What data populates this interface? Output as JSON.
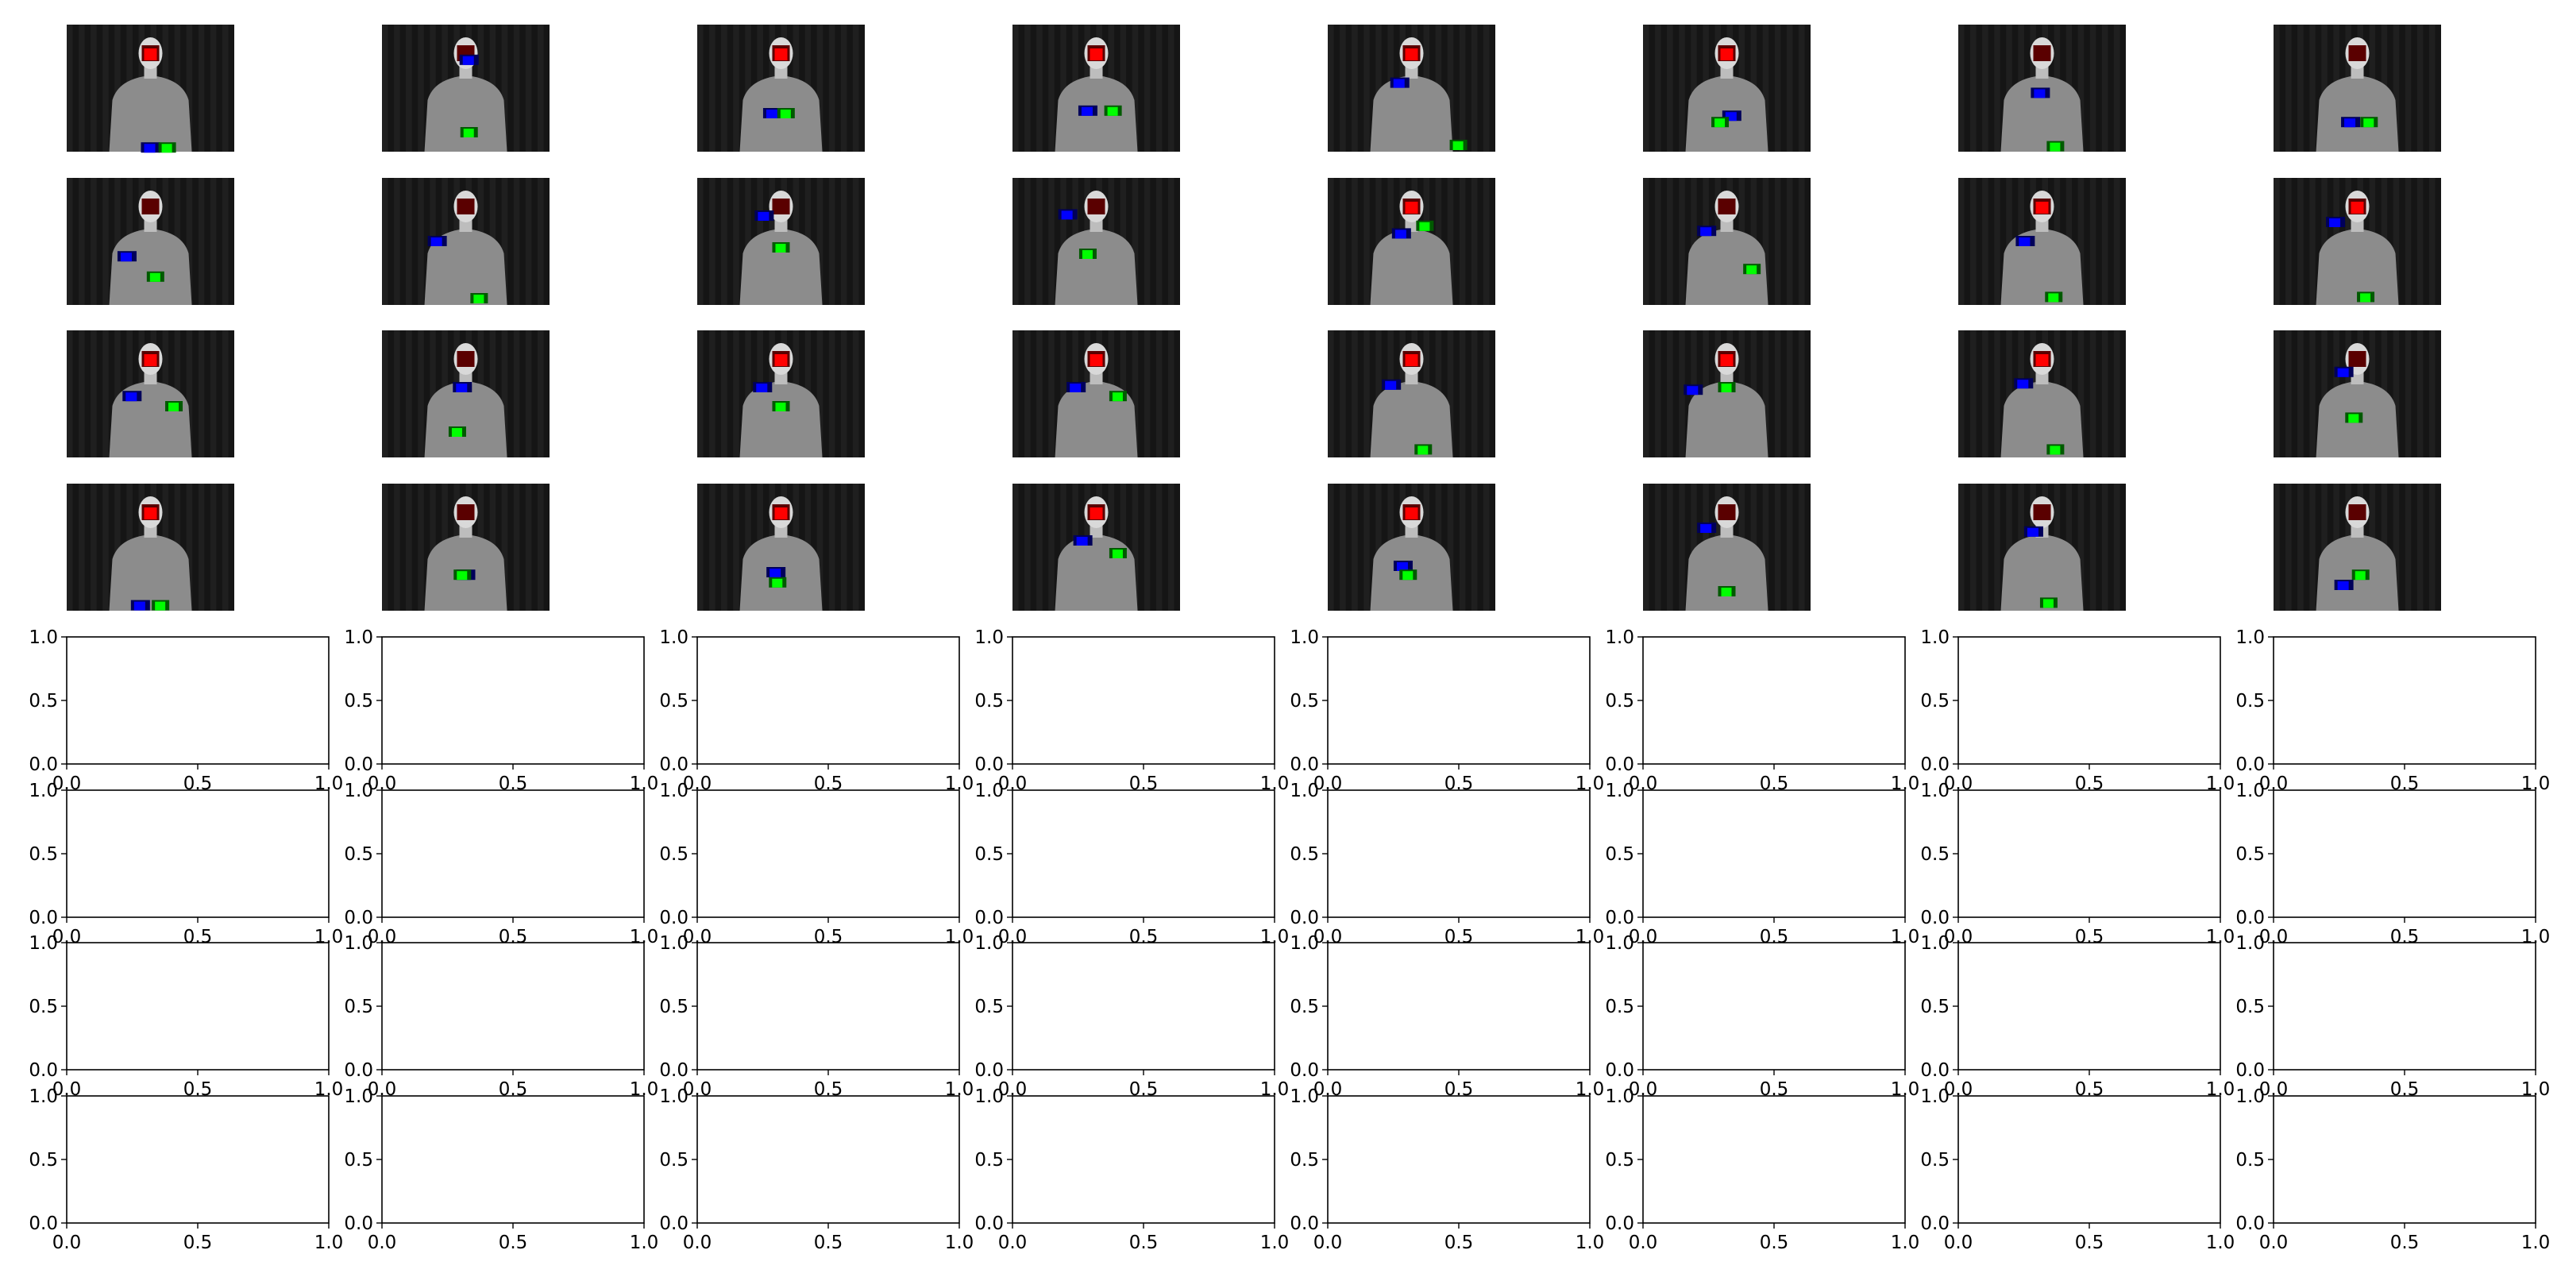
{
  "figure": {
    "layout": {
      "rows": 8,
      "cols": 8
    },
    "image_rows": 4,
    "empty_rows": 4
  },
  "overlay_colors": {
    "face": "#ff0000",
    "face_dark": "#5a0000",
    "hand_a": "#0000ff",
    "hand_a_dark": "#00005a",
    "hand_b": "#00ff00",
    "hand_b_dark": "#005a00",
    "frame_background": "#151515",
    "figure_body": "#8c8c8c",
    "axes_edge": "#000000"
  },
  "chart_data": {
    "type": "image-grid",
    "title": "",
    "image_subplots": [
      {
        "row": 0,
        "col": 0,
        "content": "sign language frame with colored face and hand markers"
      },
      {
        "row": 0,
        "col": 1,
        "content": "sign language frame with colored face and hand markers"
      },
      {
        "row": 0,
        "col": 2,
        "content": "sign language frame with colored face and hand markers"
      },
      {
        "row": 0,
        "col": 3,
        "content": "sign language frame with colored face and hand markers"
      },
      {
        "row": 0,
        "col": 4,
        "content": "sign language frame with colored face and hand markers"
      },
      {
        "row": 0,
        "col": 5,
        "content": "sign language frame with colored face and hand markers"
      },
      {
        "row": 0,
        "col": 6,
        "content": "sign language frame with colored face and hand markers"
      },
      {
        "row": 0,
        "col": 7,
        "content": "sign language frame with colored face and hand markers"
      }
    ],
    "frames": [
      {
        "hand_a": [
          0.5,
          0.97
        ],
        "hand_b": [
          0.6,
          0.97
        ],
        "face_state": "red"
      },
      {
        "hand_a": [
          0.52,
          0.28
        ],
        "hand_b": [
          0.52,
          0.85
        ],
        "face_state": "dark"
      },
      {
        "hand_a": [
          0.45,
          0.7
        ],
        "hand_b": [
          0.53,
          0.7
        ],
        "face_state": "red"
      },
      {
        "hand_a": [
          0.45,
          0.68
        ],
        "hand_b": [
          0.6,
          0.68
        ],
        "face_state": "red"
      },
      {
        "hand_a": [
          0.43,
          0.46
        ],
        "hand_b": [
          0.78,
          0.95
        ],
        "face_state": "red"
      },
      {
        "hand_a": [
          0.53,
          0.72
        ],
        "hand_b": [
          0.46,
          0.77
        ],
        "face_state": "red"
      },
      {
        "hand_a": [
          0.49,
          0.54
        ],
        "hand_b": [
          0.58,
          0.96
        ],
        "face_state": "dark"
      },
      {
        "hand_a": [
          0.46,
          0.77
        ],
        "hand_b": [
          0.57,
          0.77
        ],
        "face_state": "dark"
      },
      {
        "hand_a": [
          0.36,
          0.62
        ],
        "hand_b": [
          0.53,
          0.78
        ],
        "face_state": "dark"
      },
      {
        "hand_a": [
          0.33,
          0.5
        ],
        "hand_b": [
          0.58,
          0.95
        ],
        "face_state": "dark"
      },
      {
        "hand_a": [
          0.4,
          0.3
        ],
        "hand_b": [
          0.5,
          0.55
        ],
        "face_state": "dark"
      },
      {
        "hand_a": [
          0.33,
          0.29
        ],
        "hand_b": [
          0.45,
          0.6
        ],
        "face_state": "dark"
      },
      {
        "hand_a": [
          0.44,
          0.44
        ],
        "hand_b": [
          0.58,
          0.38
        ],
        "face_state": "red"
      },
      {
        "hand_a": [
          0.38,
          0.42
        ],
        "hand_b": [
          0.65,
          0.72
        ],
        "face_state": "dark"
      },
      {
        "hand_a": [
          0.4,
          0.5
        ],
        "hand_b": [
          0.57,
          0.94
        ],
        "face_state": "red"
      },
      {
        "hand_a": [
          0.37,
          0.35
        ],
        "hand_b": [
          0.55,
          0.94
        ],
        "face_state": "red"
      },
      {
        "hand_a": [
          0.39,
          0.52
        ],
        "hand_b": [
          0.64,
          0.6
        ],
        "face_state": "red"
      },
      {
        "hand_a": [
          0.48,
          0.45
        ],
        "hand_b": [
          0.45,
          0.8
        ],
        "face_state": "dark"
      },
      {
        "hand_a": [
          0.39,
          0.45
        ],
        "hand_b": [
          0.5,
          0.6
        ],
        "face_state": "red"
      },
      {
        "hand_a": [
          0.38,
          0.45
        ],
        "hand_b": [
          0.63,
          0.52
        ],
        "face_state": "red"
      },
      {
        "hand_a": [
          0.38,
          0.43
        ],
        "hand_b": [
          0.57,
          0.94
        ],
        "face_state": "red"
      },
      {
        "hand_a": [
          0.3,
          0.47
        ],
        "hand_b": [
          0.5,
          0.45
        ],
        "face_state": "red"
      },
      {
        "hand_a": [
          0.39,
          0.42
        ],
        "hand_b": [
          0.58,
          0.94
        ],
        "face_state": "red"
      },
      {
        "hand_a": [
          0.42,
          0.33
        ],
        "hand_b": [
          0.48,
          0.69
        ],
        "face_state": "dark"
      },
      {
        "hand_a": [
          0.44,
          0.96
        ],
        "hand_b": [
          0.56,
          0.96
        ],
        "face_state": "red"
      },
      {
        "hand_a": [
          0.5,
          0.72
        ],
        "hand_b": [
          0.48,
          0.72
        ],
        "face_state": "dark"
      },
      {
        "hand_a": [
          0.47,
          0.7
        ],
        "hand_b": [
          0.48,
          0.78
        ],
        "face_state": "red"
      },
      {
        "hand_a": [
          0.42,
          0.45
        ],
        "hand_b": [
          0.63,
          0.55
        ],
        "face_state": "red"
      },
      {
        "hand_a": [
          0.45,
          0.65
        ],
        "hand_b": [
          0.48,
          0.72
        ],
        "face_state": "red"
      },
      {
        "hand_a": [
          0.38,
          0.35
        ],
        "hand_b": [
          0.5,
          0.85
        ],
        "face_state": "dark"
      },
      {
        "hand_a": [
          0.45,
          0.38
        ],
        "hand_b": [
          0.54,
          0.94
        ],
        "face_state": "dark"
      },
      {
        "hand_a": [
          0.42,
          0.8
        ],
        "hand_b": [
          0.52,
          0.72
        ],
        "face_state": "dark"
      }
    ],
    "empty_axes": {
      "xlim": [
        0.0,
        1.0
      ],
      "ylim": [
        0.0,
        1.0
      ],
      "xticks": [
        "0.0",
        "0.5",
        "1.0"
      ],
      "yticks": [
        "0.0",
        "0.5",
        "1.0"
      ]
    }
  }
}
